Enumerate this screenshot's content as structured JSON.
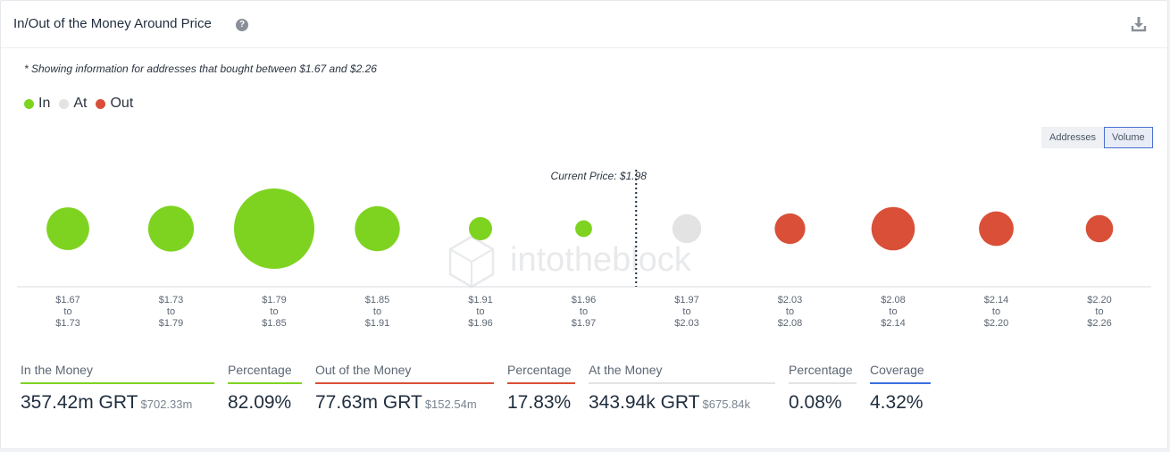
{
  "header": {
    "title": "In/Out of the Money Around Price",
    "help_icon": "question-circle-icon",
    "download_icon": "download-icon"
  },
  "note": "* Showing information for addresses that bought between $1.67 and $2.26",
  "legend": [
    {
      "label": "In",
      "color": "#7ed321"
    },
    {
      "label": "At",
      "color": "#e3e3e3"
    },
    {
      "label": "Out",
      "color": "#d94f38"
    }
  ],
  "toggle": {
    "addresses_label": "Addresses",
    "volume_label": "Volume",
    "active": "volume"
  },
  "chart_data": {
    "type": "scatter",
    "current_price_label": "Current Price: $1.98",
    "size_metric": "volume",
    "buckets": [
      {
        "from": "$1.67",
        "to_word": "to",
        "end": "$1.73",
        "status": "in",
        "size": 0.53
      },
      {
        "from": "$1.73",
        "to_word": "to",
        "end": "$1.79",
        "status": "in",
        "size": 0.57
      },
      {
        "from": "$1.79",
        "to_word": "to",
        "end": "$1.85",
        "status": "in",
        "size": 1.0
      },
      {
        "from": "$1.85",
        "to_word": "to",
        "end": "$1.91",
        "status": "in",
        "size": 0.56
      },
      {
        "from": "$1.91",
        "to_word": "to",
        "end": "$1.96",
        "status": "in",
        "size": 0.29
      },
      {
        "from": "$1.96",
        "to_word": "to",
        "end": "$1.97",
        "status": "in",
        "size": 0.21
      },
      {
        "from": "$1.97",
        "to_word": "to",
        "end": "$2.03",
        "status": "at",
        "size": 0.36
      },
      {
        "from": "$2.03",
        "to_word": "to",
        "end": "$2.08",
        "status": "out",
        "size": 0.38
      },
      {
        "from": "$2.08",
        "to_word": "to",
        "end": "$2.14",
        "status": "out",
        "size": 0.54
      },
      {
        "from": "$2.14",
        "to_word": "to",
        "end": "$2.20",
        "status": "out",
        "size": 0.43
      },
      {
        "from": "$2.20",
        "to_word": "to",
        "end": "$2.26",
        "status": "out",
        "size": 0.34
      }
    ],
    "current_price_after_bucket": 5,
    "colors": {
      "in": "#7ed321",
      "at": "#e3e3e3",
      "out": "#d94f38"
    }
  },
  "watermark": "intotheblock",
  "stats": {
    "in": {
      "label": "In the Money",
      "value": "357.42m GRT",
      "sub": "$702.33m",
      "color": "#7ed321"
    },
    "in_pct": {
      "label": "Percentage",
      "value": "82.09%",
      "color": "#7ed321"
    },
    "out": {
      "label": "Out of the Money",
      "value": "77.63m GRT",
      "sub": "$152.54m",
      "color": "#d94f38"
    },
    "out_pct": {
      "label": "Percentage",
      "value": "17.83%",
      "color": "#d94f38"
    },
    "at": {
      "label": "At the Money",
      "value": "343.94k GRT",
      "sub": "$675.84k",
      "color": "#e3e3e3"
    },
    "at_pct": {
      "label": "Percentage",
      "value": "0.08%",
      "color": "#e3e3e3"
    },
    "coverage": {
      "label": "Coverage",
      "value": "4.32%",
      "color": "#3b6fe0"
    }
  }
}
